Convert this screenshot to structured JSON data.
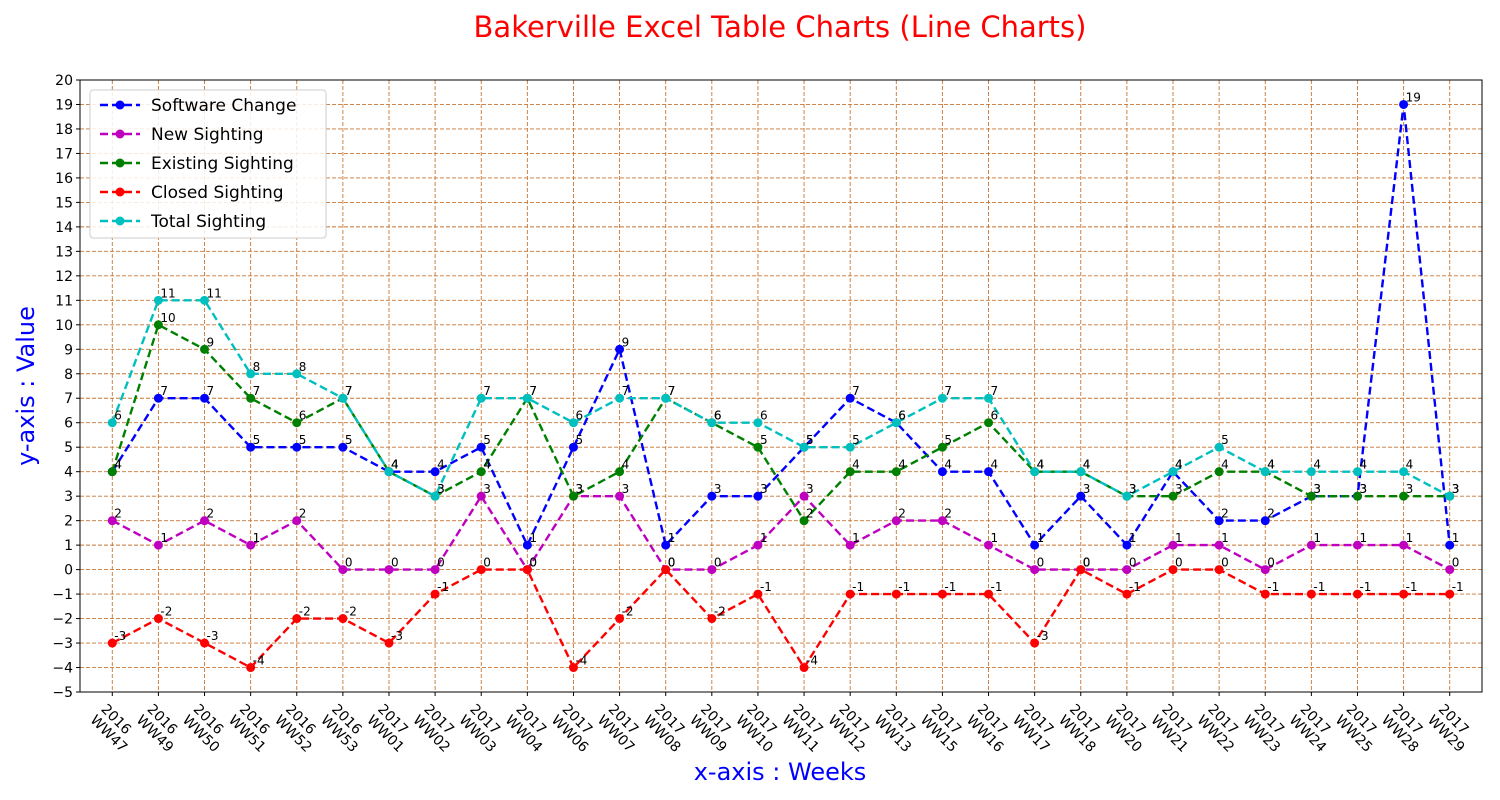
{
  "chart_data": {
    "type": "line",
    "title": "Bakerville Excel Table Charts (Line Charts)",
    "xlabel": "x-axis : Weeks",
    "ylabel": "y-axis : Value",
    "ylim": [
      -5,
      20
    ],
    "grid": true,
    "legend_position": "top-left",
    "colors": {
      "title": "#ff0000",
      "axis_label": "#0000ff",
      "grid": "#c87533"
    },
    "x": [
      "2016\nWW47",
      "2016\nWW49",
      "2016\nWW50",
      "2016\nWW51",
      "2016\nWW52",
      "2016\nWW53",
      "2017\nWW01",
      "2017\nWW02",
      "2017\nWW03",
      "2017\nWW04",
      "2017\nWW06",
      "2017\nWW07",
      "2017\nWW08",
      "2017\nWW09",
      "2017\nWW10",
      "2017\nWW11",
      "2017\nWW12",
      "2017\nWW13",
      "2017\nWW15",
      "2017\nWW16",
      "2017\nWW17",
      "2017\nWW18",
      "2017\nWW20",
      "2017\nWW21",
      "2017\nWW22",
      "2017\nWW23",
      "2017\nWW24",
      "2017\nWW25",
      "2017\nWW28",
      "2017\nWW29"
    ],
    "series": [
      {
        "name": "Software Change",
        "color": "#0000ff",
        "values": [
          4,
          7,
          7,
          5,
          5,
          5,
          4,
          4,
          5,
          1,
          5,
          9,
          1,
          3,
          3,
          5,
          7,
          6,
          4,
          4,
          1,
          3,
          1,
          4,
          2,
          2,
          3,
          3,
          19,
          1
        ]
      },
      {
        "name": "New Sighting",
        "color": "#bf00bf",
        "values": [
          2,
          1,
          2,
          1,
          2,
          0,
          0,
          0,
          3,
          0,
          3,
          3,
          0,
          0,
          1,
          3,
          1,
          2,
          2,
          1,
          0,
          0,
          0,
          1,
          1,
          0,
          1,
          1,
          1,
          0
        ]
      },
      {
        "name": "Existing Sighting",
        "color": "#008000",
        "values": [
          4,
          10,
          9,
          7,
          6,
          7,
          4,
          3,
          4,
          7,
          3,
          4,
          7,
          6,
          5,
          2,
          4,
          4,
          5,
          6,
          4,
          4,
          3,
          3,
          4,
          4,
          3,
          3,
          3,
          3
        ]
      },
      {
        "name": "Closed Sighting",
        "color": "#ff0000",
        "values": [
          -3,
          -2,
          -3,
          -4,
          -2,
          -2,
          -3,
          -1,
          0,
          0,
          -4,
          -2,
          0,
          -2,
          -1,
          -4,
          -1,
          -1,
          -1,
          -1,
          -3,
          0,
          -1,
          0,
          0,
          -1,
          -1,
          -1,
          -1,
          -1
        ]
      },
      {
        "name": "Total Sighting",
        "color": "#00bfbf",
        "values": [
          6,
          11,
          11,
          8,
          8,
          7,
          4,
          3,
          7,
          7,
          6,
          7,
          7,
          6,
          6,
          5,
          5,
          6,
          7,
          7,
          4,
          4,
          3,
          4,
          5,
          4,
          4,
          4,
          4,
          3
        ]
      }
    ]
  }
}
